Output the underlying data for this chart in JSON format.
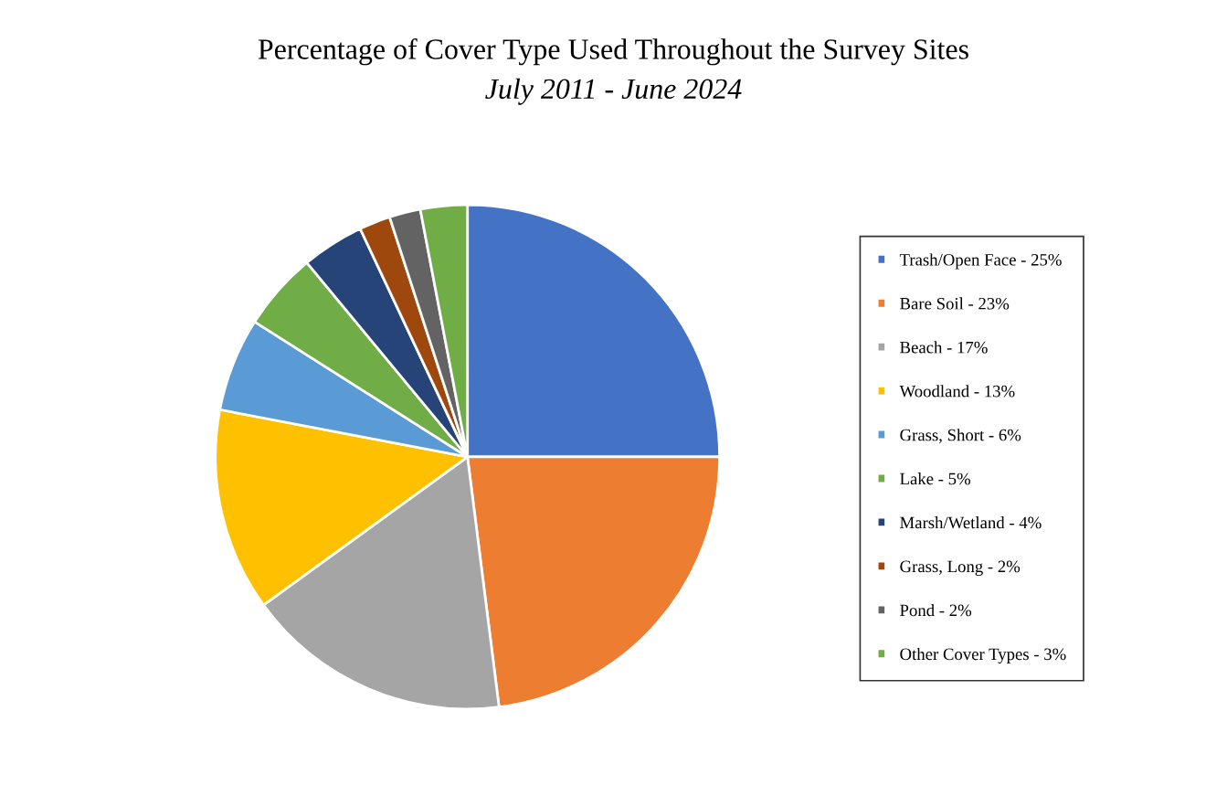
{
  "chart_data": {
    "type": "pie",
    "title": "Percentage of Cover Type Used Throughout the Survey Sites",
    "subtitle": "July 2011 - June 2024",
    "categories": [
      "Trash/Open Face - 25%",
      "Bare Soil - 23%",
      "Beach - 17%",
      "Woodland - 13%",
      "Grass, Short - 6%",
      "Lake - 5%",
      "Marsh/Wetland - 4%",
      "Grass, Long - 2%",
      "Pond - 2%",
      "Other Cover Types - 3%"
    ],
    "values": [
      25,
      23,
      17,
      13,
      6,
      5,
      4,
      2,
      2,
      3
    ],
    "colors": [
      "#4472c4",
      "#ed7d31",
      "#a5a5a5",
      "#ffc000",
      "#5b9bd5",
      "#70ad47",
      "#264478",
      "#9e480e",
      "#636363",
      "#70ad47"
    ],
    "legend": "right"
  }
}
